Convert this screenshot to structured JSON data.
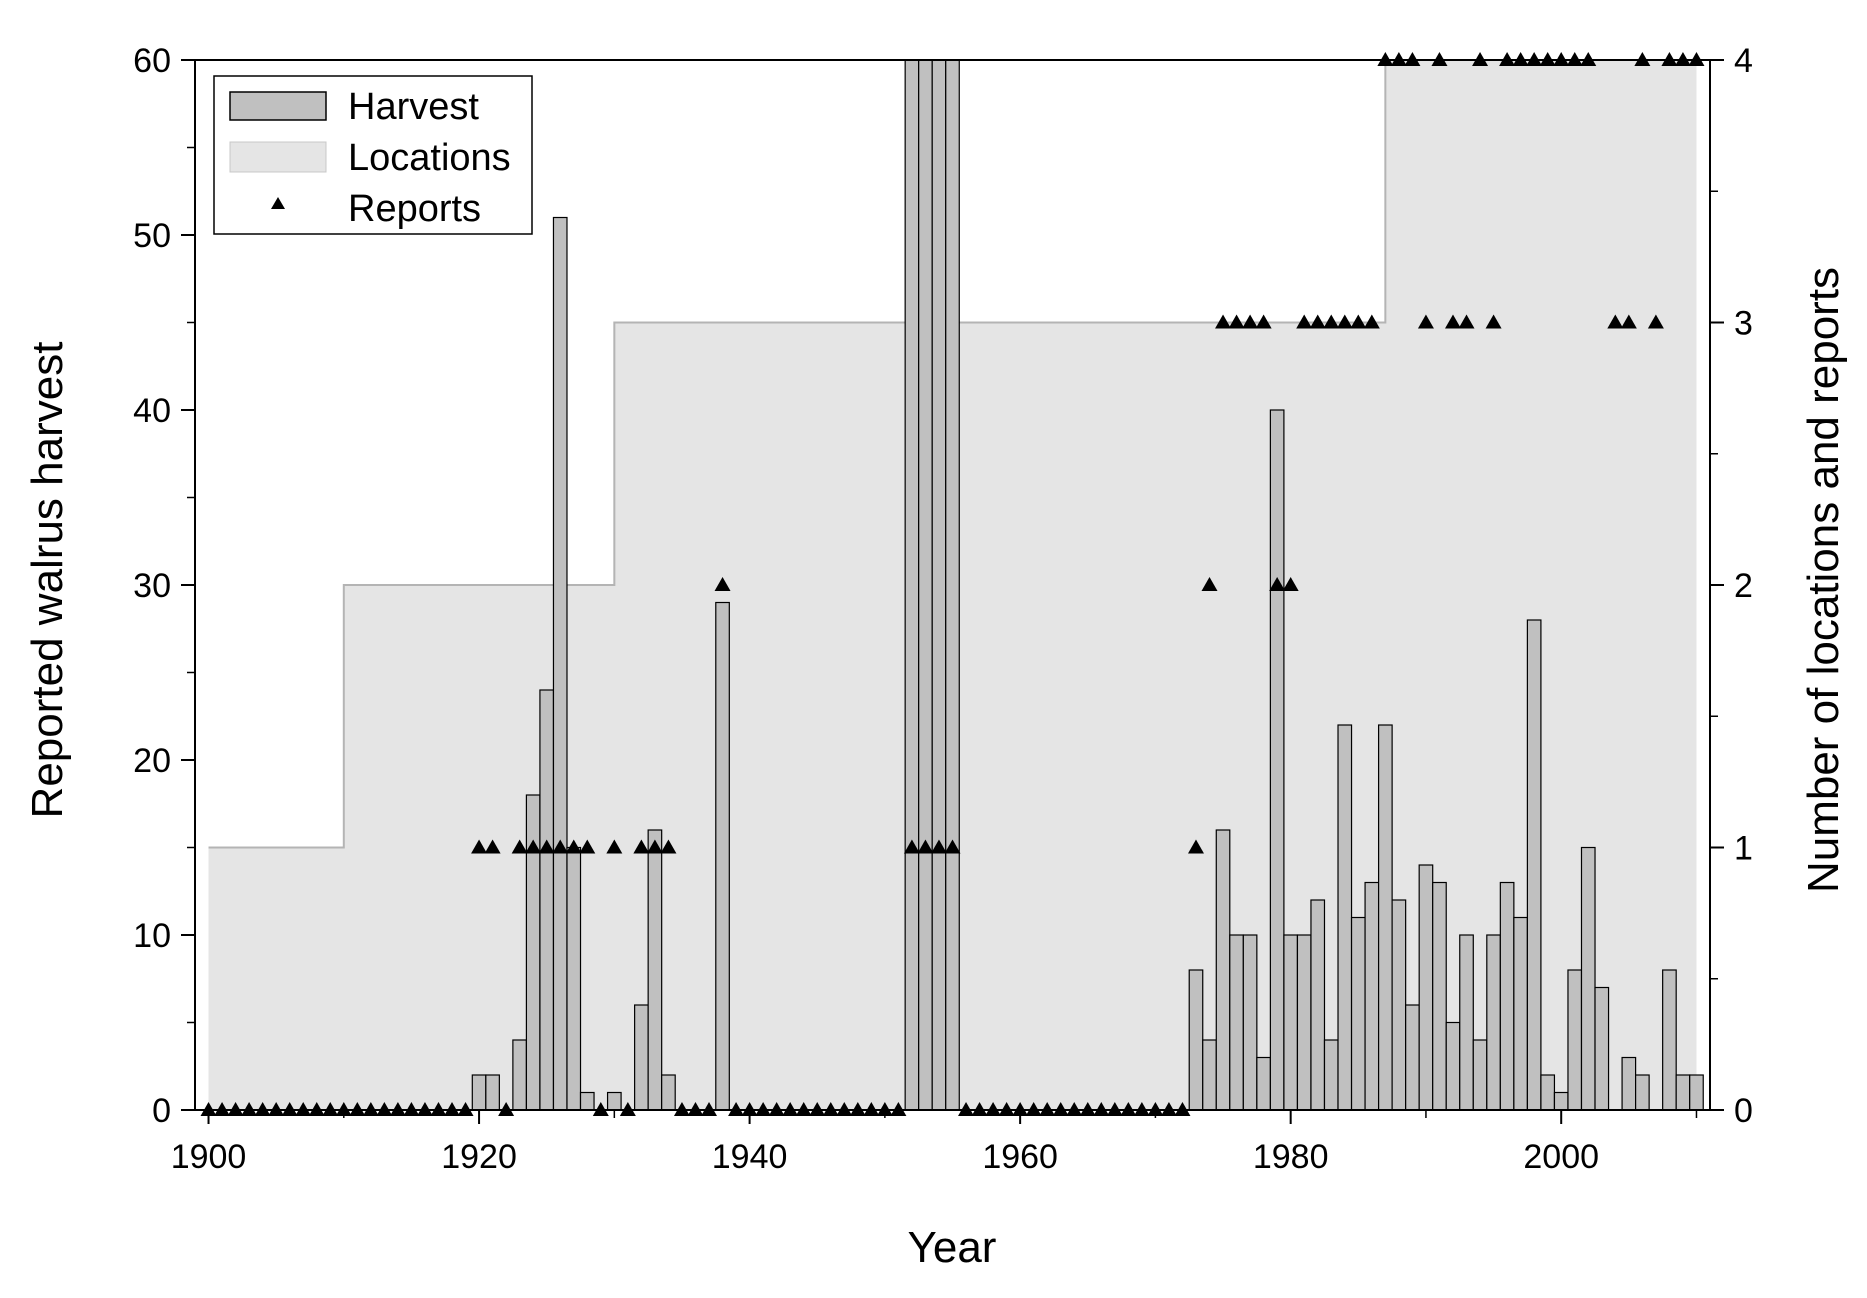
{
  "chart_data": {
    "type": "bar",
    "xlabel": "Year",
    "ylabel": "Reported walrus harvest",
    "y2label": "Number of locations and reports",
    "xlim": [
      1899,
      2011
    ],
    "ylim": [
      0,
      60
    ],
    "y2lim": [
      0,
      4
    ],
    "x_ticks": [
      1900,
      1920,
      1940,
      1960,
      1980,
      2000
    ],
    "y_ticks": [
      0,
      10,
      20,
      30,
      40,
      50,
      60
    ],
    "y2_ticks": [
      0,
      1,
      2,
      3,
      4
    ],
    "legend": {
      "position": "top-left",
      "entries": [
        {
          "key": "harvest",
          "label": "Harvest"
        },
        {
          "key": "locations",
          "label": "Locations"
        },
        {
          "key": "reports",
          "label": "Reports"
        }
      ]
    },
    "colors": {
      "harvest_fill": "#c0c0c0",
      "locations_fill": "#e5e5e5",
      "locations_line": "#b4b4b4",
      "marker": "#000000"
    },
    "series": [
      {
        "name": "Harvest",
        "type": "bar",
        "axis": "left",
        "x": [
          1920,
          1921,
          1923,
          1924,
          1925,
          1926,
          1927,
          1928,
          1930,
          1932,
          1933,
          1934,
          1938,
          1952,
          1953,
          1954,
          1955,
          1973,
          1974,
          1975,
          1976,
          1977,
          1978,
          1979,
          1980,
          1981,
          1982,
          1983,
          1984,
          1985,
          1986,
          1987,
          1988,
          1989,
          1990,
          1991,
          1992,
          1993,
          1994,
          1995,
          1996,
          1997,
          1998,
          1999,
          2000,
          2001,
          2002,
          2003,
          2005,
          2006,
          2008,
          2009,
          2010
        ],
        "values": [
          2,
          2,
          4,
          18,
          24,
          51,
          15,
          1,
          1,
          6,
          16,
          2,
          29,
          60,
          60,
          60,
          60,
          8,
          4,
          16,
          10,
          10,
          3,
          40,
          10,
          10,
          12,
          4,
          22,
          11,
          13,
          22,
          12,
          6,
          14,
          13,
          5,
          10,
          4,
          10,
          13,
          11,
          28,
          2,
          1,
          8,
          15,
          7,
          3,
          2,
          8,
          2,
          2
        ]
      },
      {
        "name": "Locations",
        "type": "step-area",
        "axis": "right",
        "x": [
          1900,
          1910,
          1930,
          1987,
          2010
        ],
        "values": [
          1,
          2,
          3,
          4,
          4
        ]
      },
      {
        "name": "Reports",
        "type": "scatter",
        "axis": "right",
        "x": [
          1900,
          1901,
          1902,
          1903,
          1904,
          1905,
          1906,
          1907,
          1908,
          1909,
          1910,
          1911,
          1912,
          1913,
          1914,
          1915,
          1916,
          1917,
          1918,
          1919,
          1920,
          1921,
          1922,
          1923,
          1924,
          1925,
          1926,
          1927,
          1928,
          1929,
          1930,
          1931,
          1932,
          1933,
          1934,
          1935,
          1936,
          1937,
          1938,
          1939,
          1940,
          1941,
          1942,
          1943,
          1944,
          1945,
          1946,
          1947,
          1948,
          1949,
          1950,
          1951,
          1952,
          1953,
          1954,
          1955,
          1956,
          1957,
          1958,
          1959,
          1960,
          1961,
          1962,
          1963,
          1964,
          1965,
          1966,
          1967,
          1968,
          1969,
          1970,
          1971,
          1972,
          1973,
          1974,
          1975,
          1976,
          1977,
          1978,
          1979,
          1980,
          1981,
          1982,
          1983,
          1984,
          1985,
          1986,
          1987,
          1988,
          1989,
          1990,
          1991,
          1992,
          1993,
          1994,
          1995,
          1996,
          1997,
          1998,
          1999,
          2000,
          2001,
          2002,
          2004,
          2005,
          2006,
          2007,
          2008,
          2009,
          2010
        ],
        "values": [
          0,
          0,
          0,
          0,
          0,
          0,
          0,
          0,
          0,
          0,
          0,
          0,
          0,
          0,
          0,
          0,
          0,
          0,
          0,
          0,
          1,
          1,
          0,
          1,
          1,
          1,
          1,
          1,
          1,
          0,
          1,
          0,
          1,
          1,
          1,
          0,
          0,
          0,
          2,
          0,
          0,
          0,
          0,
          0,
          0,
          0,
          0,
          0,
          0,
          0,
          0,
          0,
          1,
          1,
          1,
          1,
          0,
          0,
          0,
          0,
          0,
          0,
          0,
          0,
          0,
          0,
          0,
          0,
          0,
          0,
          0,
          0,
          0,
          1,
          2,
          3,
          3,
          3,
          3,
          2,
          2,
          3,
          3,
          3,
          3,
          3,
          3,
          4,
          4,
          4,
          3,
          4,
          3,
          3,
          4,
          3,
          4,
          4,
          4,
          4,
          4,
          4,
          4,
          3,
          3,
          4,
          3,
          4,
          4,
          4
        ]
      }
    ]
  }
}
